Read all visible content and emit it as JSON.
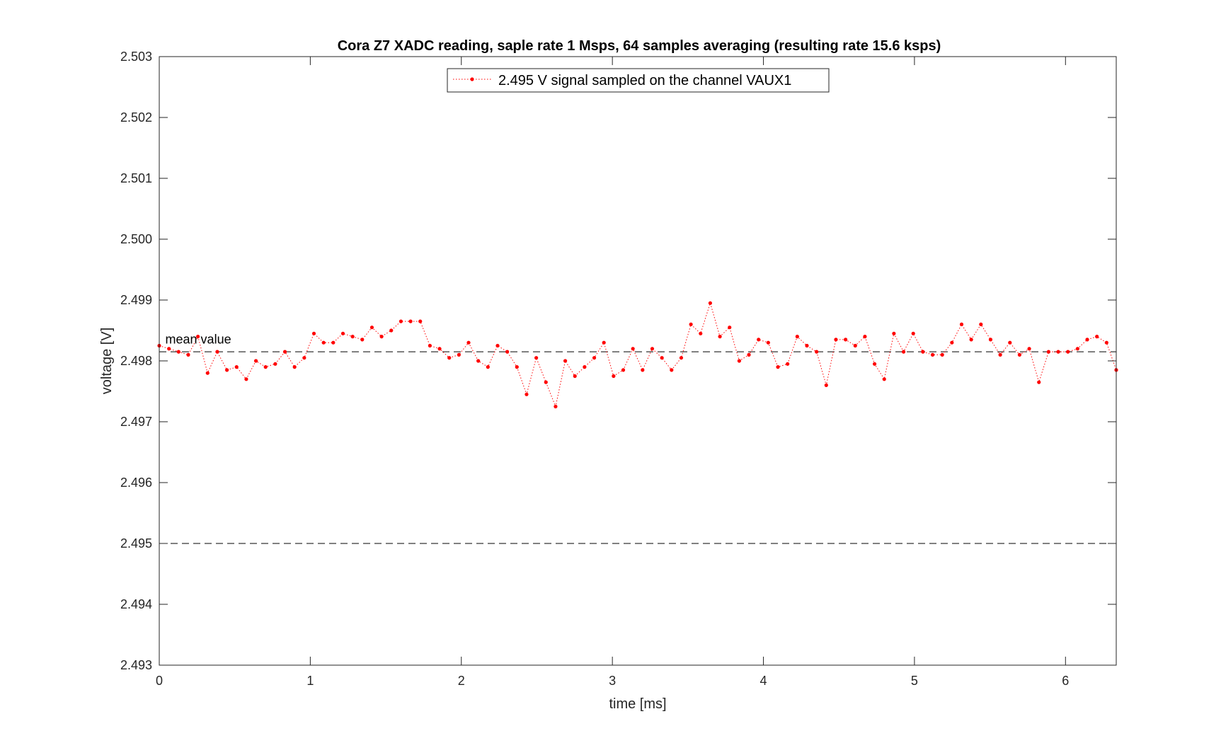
{
  "chart_data": {
    "type": "line",
    "title": "Cora Z7 XADC reading, saple rate 1 Msps, 64 samples averaging (resulting rate 15.6 ksps)",
    "xlabel": "time [ms]",
    "ylabel": "voltage [V]",
    "xlim": [
      0,
      6.336
    ],
    "ylim": [
      2.493,
      2.503
    ],
    "xticks": [
      0,
      1,
      2,
      3,
      4,
      5,
      6
    ],
    "xtick_labels": [
      "0",
      "1",
      "2",
      "3",
      "4",
      "5",
      "6"
    ],
    "yticks": [
      2.493,
      2.494,
      2.495,
      2.496,
      2.497,
      2.498,
      2.499,
      2.5,
      2.501,
      2.502,
      2.503
    ],
    "ytick_labels": [
      "2.493",
      "2.494",
      "2.495",
      "2.496",
      "2.497",
      "2.498",
      "2.499",
      "2.500",
      "2.501",
      "2.502",
      "2.503"
    ],
    "grid": false,
    "legend_position": "top-center",
    "series": [
      {
        "name": "2.495 V signal sampled on the channel VAUX1",
        "color": "#ff0000",
        "line_style": "dotted",
        "marker": "dot",
        "x_start": 0,
        "x_step": 0.064,
        "values": [
          2.49825,
          2.4982,
          2.49815,
          2.4981,
          2.4984,
          2.4978,
          2.49815,
          2.49785,
          2.4979,
          2.4977,
          2.498,
          2.4979,
          2.49795,
          2.49815,
          2.4979,
          2.49805,
          2.49845,
          2.4983,
          2.4983,
          2.49845,
          2.4984,
          2.49835,
          2.49855,
          2.4984,
          2.4985,
          2.49865,
          2.49865,
          2.49865,
          2.49825,
          2.4982,
          2.49805,
          2.4981,
          2.4983,
          2.498,
          2.4979,
          2.49825,
          2.49815,
          2.4979,
          2.49745,
          2.49805,
          2.49765,
          2.49725,
          2.498,
          2.49775,
          2.4979,
          2.49805,
          2.4983,
          2.49775,
          2.49785,
          2.4982,
          2.49785,
          2.4982,
          2.49805,
          2.49785,
          2.49805,
          2.4986,
          2.49845,
          2.49895,
          2.4984,
          2.49855,
          2.498,
          2.4981,
          2.49835,
          2.4983,
          2.4979,
          2.49795,
          2.4984,
          2.49825,
          2.49815,
          2.4976,
          2.49835,
          2.49835,
          2.49825,
          2.4984,
          2.49795,
          2.4977,
          2.49845,
          2.49815,
          2.49845,
          2.49815,
          2.4981,
          2.4981,
          2.4983,
          2.4986,
          2.49835,
          2.4986,
          2.49835,
          2.4981,
          2.4983,
          2.4981,
          2.4982,
          2.49765,
          2.49815,
          2.49815,
          2.49815,
          2.4982,
          2.49835,
          2.4984,
          2.4983,
          2.49785
        ]
      }
    ],
    "reference_lines": [
      {
        "y": 2.49815,
        "style": "dashed",
        "color": "#000000"
      },
      {
        "y": 2.495,
        "style": "dashed",
        "color": "#000000"
      }
    ],
    "annotations": [
      {
        "text": "mean value",
        "x": 0.04,
        "y": 2.49825
      }
    ]
  }
}
